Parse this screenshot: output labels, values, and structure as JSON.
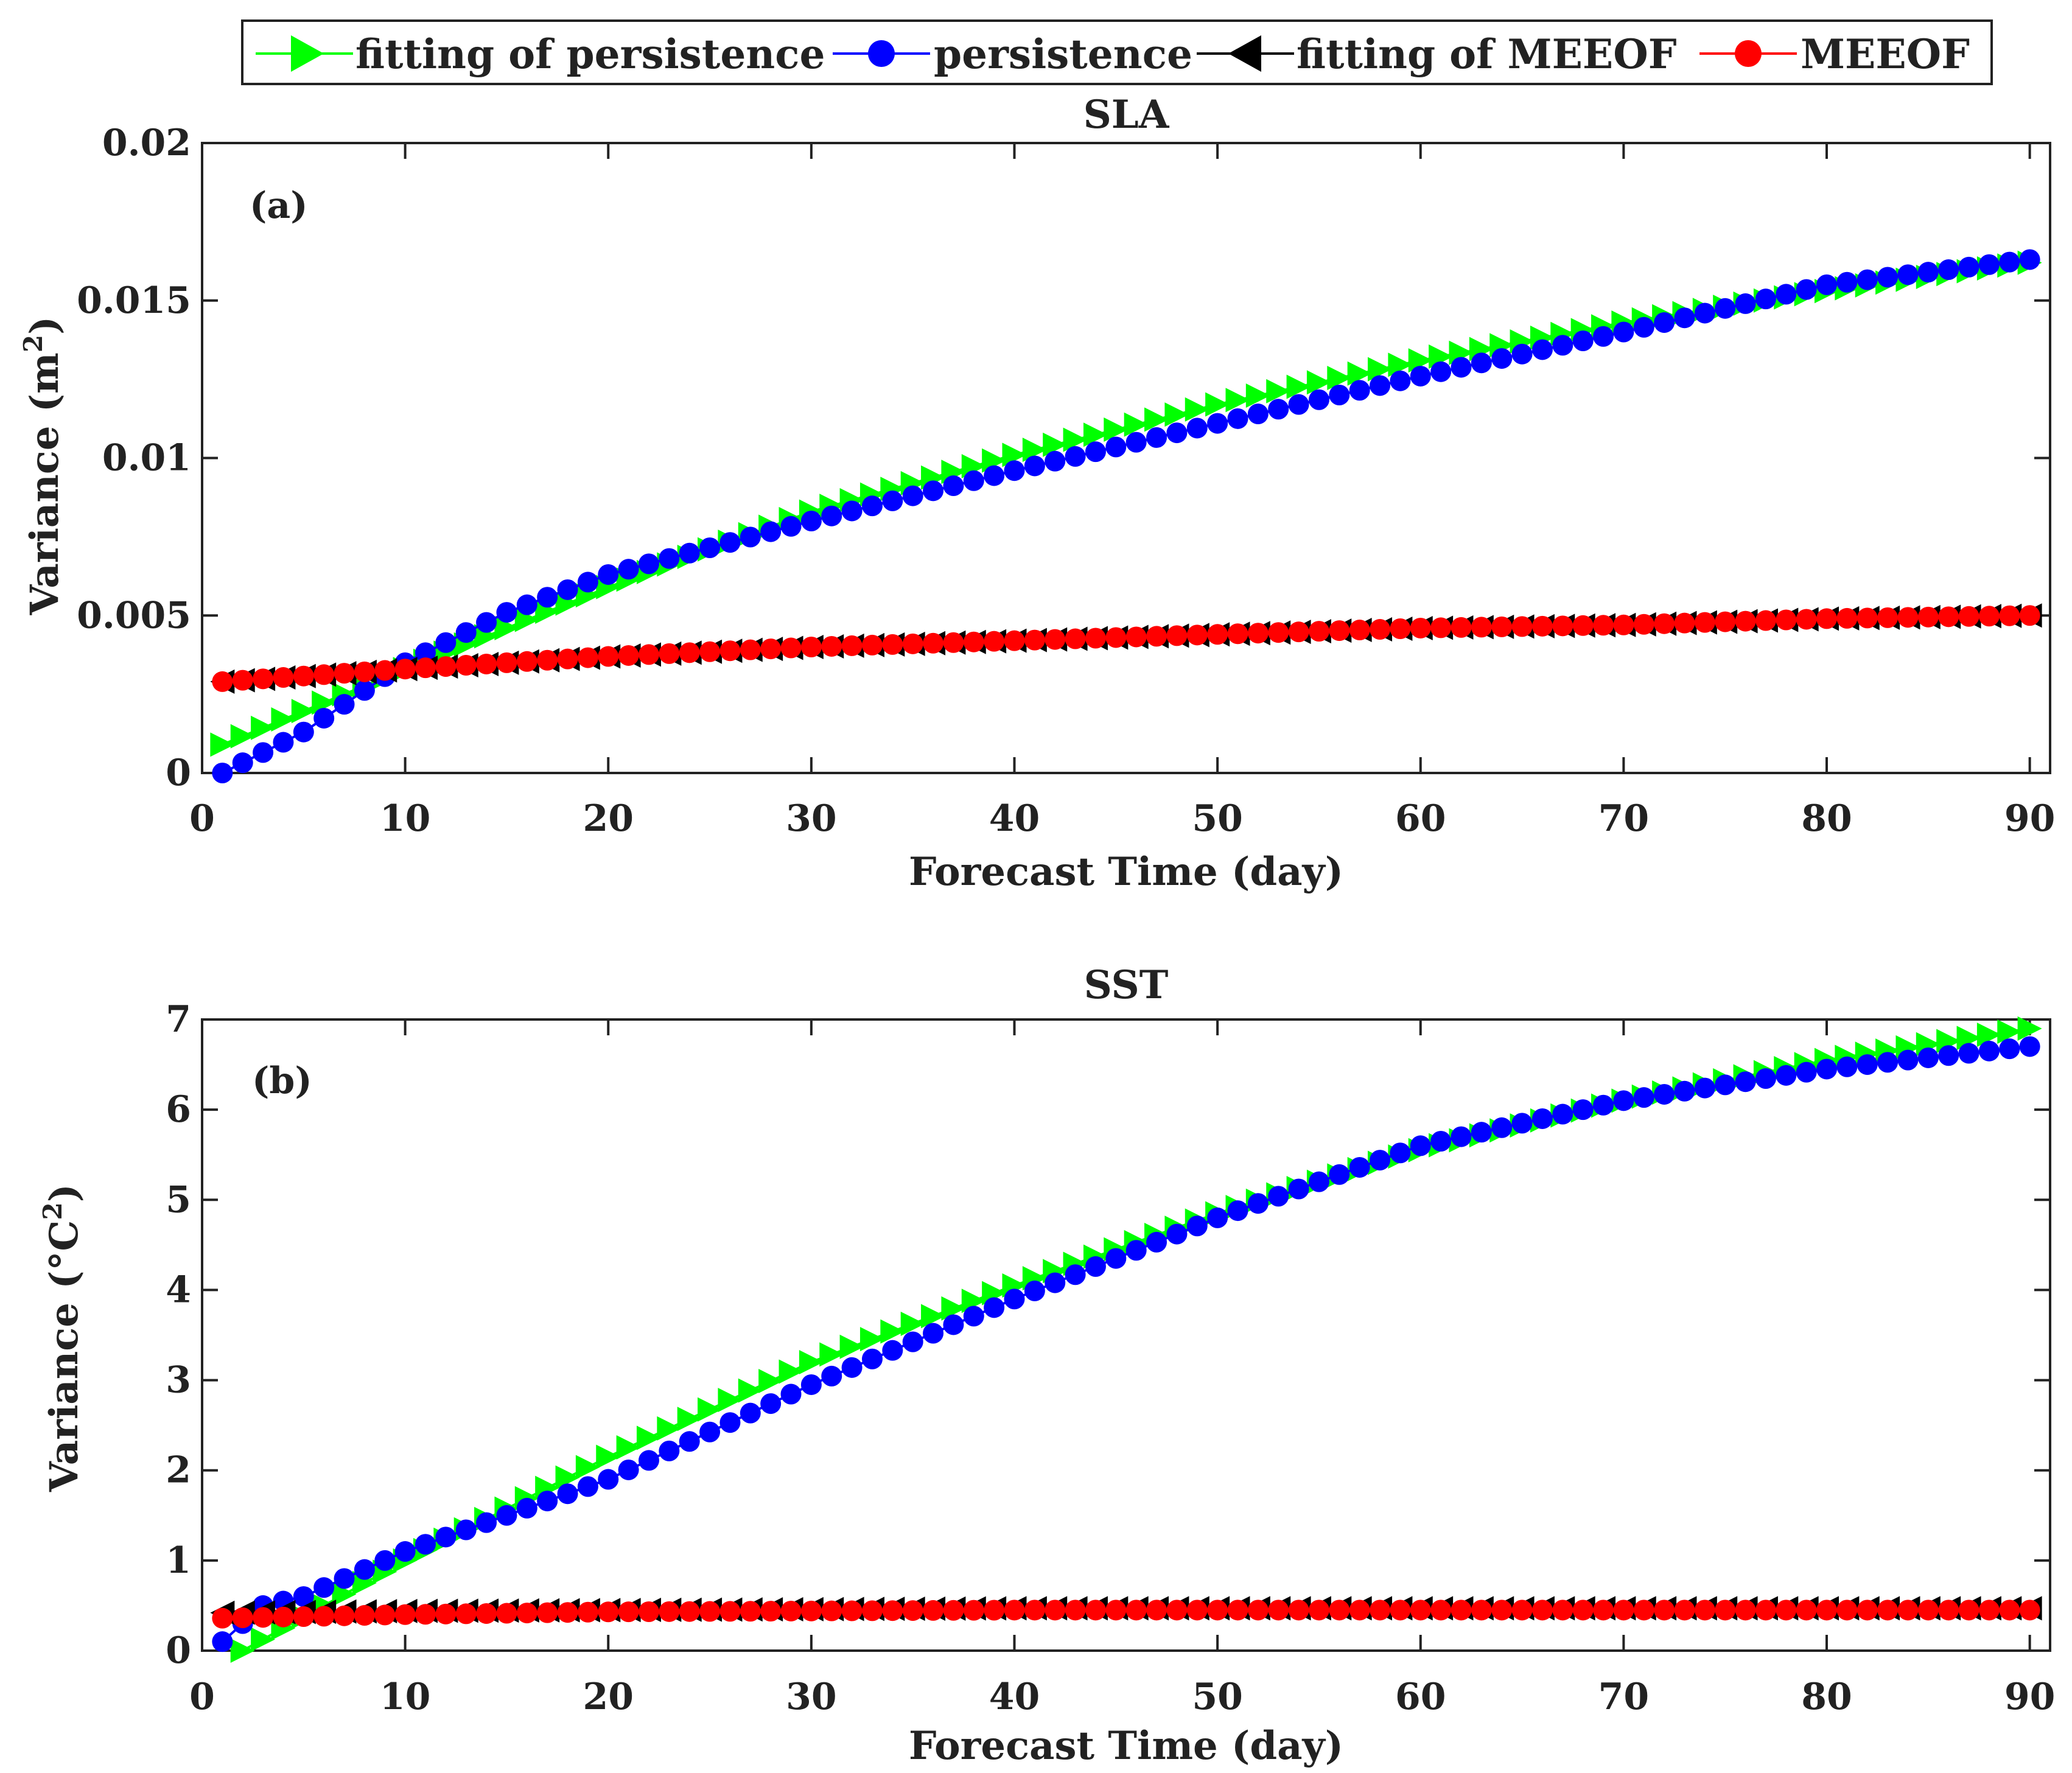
{
  "legend": {
    "entries": [
      {
        "label": "fitting of persistence",
        "marker": "triangle-right",
        "color": "#00ff00"
      },
      {
        "label": "persistence",
        "marker": "circle",
        "color": "#0000ff"
      },
      {
        "label": "fitting of MEEOF",
        "marker": "triangle-left",
        "color": "#000000"
      },
      {
        "label": "MEEOF",
        "marker": "circle",
        "color": "#ff0000"
      }
    ]
  },
  "chart_data": [
    {
      "id": "sla",
      "type": "line",
      "title": "SLA",
      "panel_label": "(a)",
      "xlabel": "Forecast Time (day)",
      "ylabel_main": "Variance (m",
      "ylabel_sup": "2",
      "ylabel_tail": ")",
      "xlim": [
        0,
        91
      ],
      "ylim": [
        0,
        0.02
      ],
      "xticks": [
        0,
        10,
        20,
        30,
        40,
        50,
        60,
        70,
        80,
        90
      ],
      "yticks": [
        0,
        0.005,
        0.01,
        0.015,
        0.02
      ],
      "ytick_labels": [
        "0",
        "0.005",
        "0.01",
        "0.015",
        "0.02"
      ],
      "x_range": [
        1,
        90
      ],
      "series": [
        {
          "name": "fitting of persistence",
          "marker": "triangle-right",
          "color": "#00ff00",
          "x": [
            1,
            10,
            20,
            30,
            40,
            50,
            60,
            70,
            80,
            90
          ],
          "y": [
            0.0009,
            0.0033,
            0.0059,
            0.0083,
            0.0101,
            0.0117,
            0.0131,
            0.0143,
            0.0153,
            0.0162
          ]
        },
        {
          "name": "persistence",
          "marker": "circle",
          "color": "#0000ff",
          "x": [
            1,
            5,
            10,
            15,
            20,
            30,
            40,
            50,
            60,
            70,
            80,
            90
          ],
          "y": [
            0.0,
            0.0013,
            0.0035,
            0.0051,
            0.0063,
            0.008,
            0.0096,
            0.0111,
            0.0126,
            0.014,
            0.0155,
            0.0163
          ]
        },
        {
          "name": "fitting of MEEOF",
          "marker": "triangle-left",
          "color": "#000000",
          "x": [
            1,
            10,
            20,
            30,
            40,
            50,
            60,
            70,
            80,
            90
          ],
          "y": [
            0.0029,
            0.0033,
            0.0037,
            0.004,
            0.0042,
            0.0044,
            0.0046,
            0.0047,
            0.0049,
            0.005
          ]
        },
        {
          "name": "MEEOF",
          "marker": "circle",
          "color": "#ff0000",
          "x": [
            1,
            10,
            20,
            30,
            40,
            50,
            60,
            70,
            80,
            90
          ],
          "y": [
            0.0029,
            0.0033,
            0.0037,
            0.004,
            0.0042,
            0.0044,
            0.0046,
            0.0047,
            0.0049,
            0.005
          ]
        }
      ]
    },
    {
      "id": "sst",
      "type": "line",
      "title": "SST",
      "panel_label": "(b)",
      "xlabel": "Forecast Time (day)",
      "ylabel_main": "Variance (°C",
      "ylabel_sup": "2",
      "ylabel_tail": ")",
      "xlim": [
        0,
        91
      ],
      "ylim": [
        0,
        7
      ],
      "xticks": [
        0,
        10,
        20,
        30,
        40,
        50,
        60,
        70,
        80,
        90
      ],
      "yticks": [
        0,
        1,
        2,
        3,
        4,
        5,
        6,
        7
      ],
      "ytick_labels": [
        "0",
        "1",
        "2",
        "3",
        "4",
        "5",
        "6",
        "7"
      ],
      "x_range": [
        1,
        90
      ],
      "series": [
        {
          "name": "fitting of persistence",
          "marker": "triangle-right",
          "color": "#00ff00",
          "x": [
            2,
            10,
            20,
            30,
            40,
            50,
            60,
            70,
            80,
            90
          ],
          "y": [
            0.0,
            1.0,
            2.15,
            3.2,
            4.05,
            4.85,
            5.55,
            6.1,
            6.55,
            6.9
          ]
        },
        {
          "name": "persistence",
          "marker": "circle",
          "color": "#0000ff",
          "x": [
            1,
            3,
            5,
            10,
            20,
            30,
            40,
            50,
            60,
            70,
            80,
            90
          ],
          "y": [
            0.1,
            0.5,
            0.6,
            1.1,
            1.9,
            2.95,
            3.9,
            4.8,
            5.6,
            6.1,
            6.45,
            6.7
          ]
        },
        {
          "name": "fitting of MEEOF",
          "marker": "triangle-left",
          "color": "#000000",
          "x": [
            1,
            10,
            20,
            30,
            40,
            50,
            60,
            70,
            80,
            90
          ],
          "y": [
            0.42,
            0.44,
            0.45,
            0.46,
            0.47,
            0.47,
            0.47,
            0.47,
            0.47,
            0.47
          ]
        },
        {
          "name": "MEEOF",
          "marker": "circle",
          "color": "#ff0000",
          "x": [
            1,
            10,
            20,
            30,
            40,
            50,
            60,
            70,
            80,
            90
          ],
          "y": [
            0.36,
            0.4,
            0.43,
            0.44,
            0.45,
            0.45,
            0.45,
            0.45,
            0.45,
            0.45
          ]
        }
      ]
    }
  ]
}
